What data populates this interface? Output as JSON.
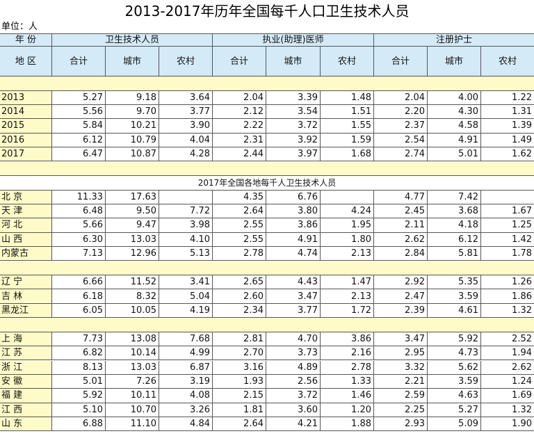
{
  "title": "2013-2017年历年全国每千人口卫生技术人员",
  "unit": "单位：人",
  "header": {
    "year_label": "年 份",
    "region_label": "地 区",
    "groups": [
      "卫生技术人员",
      "执业(助理)医师",
      "注册护士"
    ],
    "subcolumns": [
      "合计",
      "城市",
      "农村"
    ]
  },
  "yearly": {
    "rows": [
      {
        "label": "2013",
        "values": [
          "5.27",
          "9.18",
          "3.64",
          "2.04",
          "3.39",
          "1.48",
          "2.04",
          "4.00",
          "1.22"
        ]
      },
      {
        "label": "2014",
        "values": [
          "5.56",
          "9.70",
          "3.77",
          "2.12",
          "3.54",
          "1.51",
          "2.20",
          "4.30",
          "1.31"
        ]
      },
      {
        "label": "2015",
        "values": [
          "5.84",
          "10.21",
          "3.90",
          "2.22",
          "3.72",
          "1.55",
          "2.37",
          "4.58",
          "1.39"
        ]
      },
      {
        "label": "2016",
        "values": [
          "6.12",
          "10.79",
          "4.04",
          "2.31",
          "3.92",
          "1.59",
          "2.54",
          "4.91",
          "1.49"
        ]
      },
      {
        "label": "2017",
        "values": [
          "6.47",
          "10.87",
          "4.28",
          "2.44",
          "3.97",
          "1.68",
          "2.74",
          "5.01",
          "1.62"
        ]
      }
    ]
  },
  "regional": {
    "title": "2017年全国各地每千人卫生技术人员",
    "blocks": [
      {
        "rows": [
          {
            "label": "北 京",
            "values": [
              "11.33",
              "17.63",
              null,
              "4.35",
              "6.76",
              null,
              "4.77",
              "7.42",
              null
            ]
          },
          {
            "label": "天 津",
            "values": [
              "6.48",
              "9.50",
              "7.72",
              "2.64",
              "3.80",
              "4.24",
              "2.45",
              "3.68",
              "1.67"
            ]
          },
          {
            "label": "河 北",
            "values": [
              "5.66",
              "9.47",
              "3.98",
              "2.55",
              "3.86",
              "1.95",
              "2.11",
              "4.18",
              "1.25"
            ]
          },
          {
            "label": "山 西",
            "values": [
              "6.30",
              "13.03",
              "4.10",
              "2.55",
              "4.91",
              "1.80",
              "2.62",
              "6.12",
              "1.42"
            ]
          },
          {
            "label": "内蒙古",
            "values": [
              "7.13",
              "12.96",
              "5.13",
              "2.78",
              "4.74",
              "2.13",
              "2.84",
              "5.81",
              "1.78"
            ]
          }
        ]
      },
      {
        "rows": [
          {
            "label": "辽 宁",
            "values": [
              "6.66",
              "11.52",
              "3.41",
              "2.65",
              "4.43",
              "1.47",
              "2.92",
              "5.35",
              "1.26"
            ]
          },
          {
            "label": "吉 林",
            "values": [
              "6.18",
              "8.32",
              "5.04",
              "2.60",
              "3.47",
              "2.13",
              "2.47",
              "3.59",
              "1.86"
            ]
          },
          {
            "label": "黑龙江",
            "values": [
              "6.05",
              "10.05",
              "4.19",
              "2.34",
              "3.77",
              "1.72",
              "2.39",
              "4.61",
              "1.32"
            ]
          }
        ]
      },
      {
        "rows": [
          {
            "label": "上 海",
            "values": [
              "7.73",
              "13.08",
              "7.68",
              "2.81",
              "4.70",
              "3.86",
              "3.47",
              "5.92",
              "2.52"
            ]
          },
          {
            "label": "江 苏",
            "values": [
              "6.82",
              "10.14",
              "4.99",
              "2.70",
              "3.73",
              "2.16",
              "2.95",
              "4.73",
              "1.94"
            ]
          },
          {
            "label": "浙 江",
            "values": [
              "8.13",
              "13.03",
              "6.87",
              "3.16",
              "4.89",
              "2.78",
              "3.32",
              "5.62",
              "2.62"
            ]
          },
          {
            "label": "安 徽",
            "values": [
              "5.01",
              "7.26",
              "3.19",
              "1.93",
              "2.56",
              "1.33",
              "2.21",
              "3.59",
              "1.24"
            ]
          },
          {
            "label": "福 建",
            "values": [
              "5.92",
              "10.11",
              "4.08",
              "2.15",
              "3.72",
              "1.46",
              "2.59",
              "4.63",
              "1.69"
            ]
          },
          {
            "label": "江 西",
            "values": [
              "5.10",
              "10.70",
              "3.26",
              "1.81",
              "3.60",
              "1.20",
              "2.25",
              "5.27",
              "1.32"
            ]
          },
          {
            "label": "山 东",
            "values": [
              "6.88",
              "11.10",
              "4.84",
              "2.64",
              "4.21",
              "1.88",
              "2.93",
              "5.09",
              "1.90"
            ]
          }
        ]
      }
    ]
  }
}
